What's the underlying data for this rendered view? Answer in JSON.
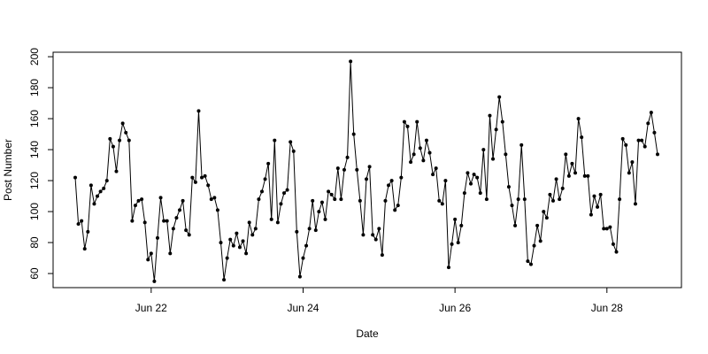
{
  "chart_data": {
    "type": "line",
    "xlabel": "Date",
    "ylabel": "Post Number",
    "categories": [
      null,
      null,
      null,
      null,
      null,
      null,
      null,
      null,
      null,
      null,
      null,
      null,
      null,
      null,
      null,
      null,
      null,
      null,
      null,
      null,
      null,
      null,
      null,
      null,
      "Jun 22",
      null,
      null,
      null,
      null,
      null,
      null,
      null,
      null,
      null,
      null,
      null,
      null,
      null,
      null,
      null,
      null,
      null,
      null,
      null,
      null,
      null,
      null,
      null,
      null,
      null,
      null,
      null,
      null,
      null,
      null,
      null,
      null,
      null,
      null,
      null,
      null,
      null,
      null,
      null,
      null,
      null,
      null,
      null,
      null,
      null,
      null,
      null,
      "Jun 24",
      null,
      null,
      null,
      null,
      null,
      null,
      null,
      null,
      null,
      null,
      null,
      null,
      null,
      null,
      null,
      null,
      null,
      null,
      null,
      null,
      null,
      null,
      null,
      null,
      null,
      null,
      null,
      null,
      null,
      null,
      null,
      null,
      null,
      null,
      null,
      null,
      null,
      null,
      null,
      null,
      null,
      null,
      null,
      null,
      null,
      null,
      null,
      "Jun 26",
      null,
      null,
      null,
      null,
      null,
      null,
      null,
      null,
      null,
      null,
      null,
      null,
      null,
      null,
      null,
      null,
      null,
      null,
      null,
      null,
      null,
      null,
      null,
      null,
      null,
      null,
      null,
      null,
      null,
      null,
      null,
      null,
      null,
      null,
      null,
      null,
      null,
      null,
      null,
      null,
      null,
      null,
      null,
      null,
      null,
      null,
      null,
      "Jun 28",
      null,
      null,
      null,
      null,
      null,
      null,
      null,
      null,
      null,
      null,
      null,
      null,
      null,
      null,
      null,
      null
    ],
    "values": [
      122,
      92,
      94,
      76,
      87,
      117,
      105,
      110,
      113,
      115,
      120,
      147,
      142,
      126,
      146,
      157,
      151,
      146,
      94,
      104,
      107,
      108,
      93,
      69,
      73,
      55,
      83,
      109,
      94,
      94,
      73,
      89,
      96,
      101,
      107,
      88,
      85,
      122,
      119,
      165,
      122,
      123,
      117,
      108,
      109,
      101,
      80,
      56,
      70,
      82,
      78,
      86,
      77,
      81,
      73,
      93,
      85,
      89,
      108,
      113,
      121,
      131,
      95,
      146,
      93,
      105,
      112,
      114,
      145,
      139,
      87,
      58,
      70,
      78,
      89,
      107,
      88,
      100,
      106,
      95,
      113,
      111,
      108,
      128,
      108,
      127,
      135,
      197,
      150,
      127,
      107,
      85,
      121,
      129,
      85,
      82,
      89,
      72,
      107,
      117,
      120,
      101,
      104,
      122,
      158,
      155,
      132,
      137,
      158,
      141,
      133,
      146,
      138,
      124,
      128,
      107,
      105,
      120,
      64,
      79,
      95,
      80,
      91,
      112,
      125,
      118,
      124,
      122,
      112,
      140,
      108,
      162,
      134,
      153,
      174,
      158,
      137,
      116,
      104,
      91,
      108,
      143,
      108,
      68,
      66,
      78,
      91,
      81,
      100,
      96,
      111,
      107,
      121,
      108,
      115,
      137,
      123,
      131,
      125,
      160,
      148,
      123,
      123,
      98,
      110,
      103,
      111,
      89,
      89,
      90,
      79,
      74,
      108,
      147,
      143,
      125,
      132,
      105,
      146,
      146,
      142,
      157,
      164,
      151,
      137
    ],
    "color": "#000000",
    "ylim": [
      50.9,
      202.9
    ],
    "yticks": [
      60,
      80,
      100,
      120,
      140,
      160,
      180,
      200
    ]
  }
}
